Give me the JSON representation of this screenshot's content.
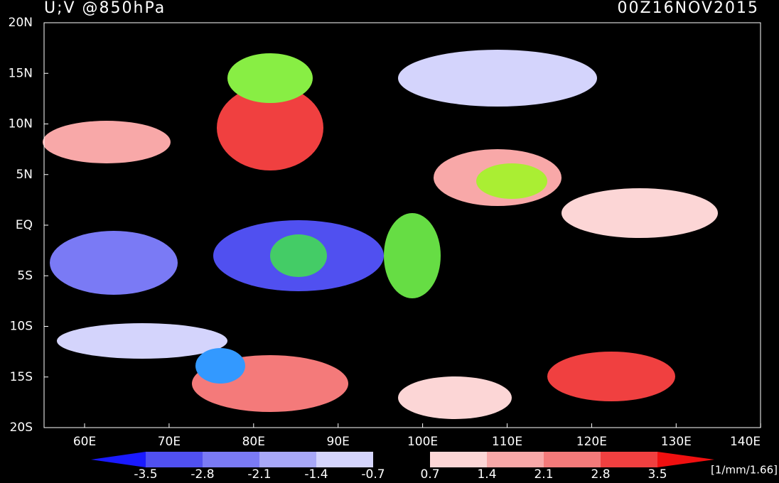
{
  "header": {
    "title": "U;V @850hPa",
    "time": "00Z16NOV2015"
  },
  "axes": {
    "xticks": [
      "60E",
      "70E",
      "80E",
      "90E",
      "100E",
      "110E",
      "120E",
      "130E",
      "140E"
    ],
    "yticks": [
      "20N",
      "15N",
      "10N",
      "5N",
      "EQ",
      "5S",
      "10S",
      "15S",
      "20S"
    ]
  },
  "colorbar": {
    "levels": [
      "-3.5",
      "-2.8",
      "-2.1",
      "-1.4",
      "-0.7",
      "0.7",
      "1.4",
      "2.1",
      "2.8",
      "3.5"
    ],
    "colors": [
      "#1a1aff",
      "#5050f0",
      "#7a7af5",
      "#a8a8f8",
      "#d4d4fc",
      "#000000",
      "#fcd6d6",
      "#f8a8a8",
      "#f47a7a",
      "#f04040",
      "#f01010"
    ],
    "units": "[1/mm/1.66]"
  }
}
